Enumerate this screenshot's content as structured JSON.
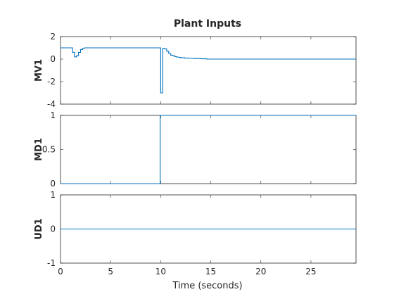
{
  "chart_data": {
    "type": "line",
    "title": "Plant Inputs",
    "xlabel": "Time (seconds)",
    "xlim": [
      0,
      29.5
    ],
    "xticks": [
      0,
      5,
      10,
      15,
      20,
      25
    ],
    "line_color": "#0072BD",
    "step": true,
    "subplots": [
      {
        "ylabel": "MV1",
        "ylim": [
          -4,
          2
        ],
        "yticks": [
          -4,
          -2,
          0,
          2
        ],
        "x": [
          0,
          1.0,
          1.2,
          1.4,
          1.6,
          1.8,
          2.0,
          2.2,
          2.4,
          2.6,
          9.8,
          10.0,
          10.2,
          10.4,
          10.6,
          10.8,
          11.0,
          11.2,
          11.4,
          11.6,
          11.8,
          12.0,
          12.4,
          12.8,
          13.4,
          14.0,
          14.6,
          29.5
        ],
        "y": [
          1.0,
          1.0,
          0.6,
          0.2,
          0.3,
          0.6,
          0.85,
          0.95,
          1.0,
          1.0,
          1.0,
          -3.0,
          0.95,
          0.9,
          0.7,
          0.5,
          0.35,
          0.3,
          0.22,
          0.18,
          0.15,
          0.12,
          0.09,
          0.07,
          0.05,
          0.03,
          0.0,
          0.0
        ]
      },
      {
        "ylabel": "MD1",
        "ylim": [
          0,
          1
        ],
        "yticks": [
          0,
          0.5,
          1
        ],
        "x": [
          0,
          9.95,
          9.95,
          29.5
        ],
        "y": [
          0,
          0,
          1,
          1
        ]
      },
      {
        "ylabel": "UD1",
        "ylim": [
          -1,
          1
        ],
        "yticks": [
          -1,
          0,
          1
        ],
        "x": [
          0,
          29.5
        ],
        "y": [
          0,
          0
        ]
      }
    ]
  }
}
